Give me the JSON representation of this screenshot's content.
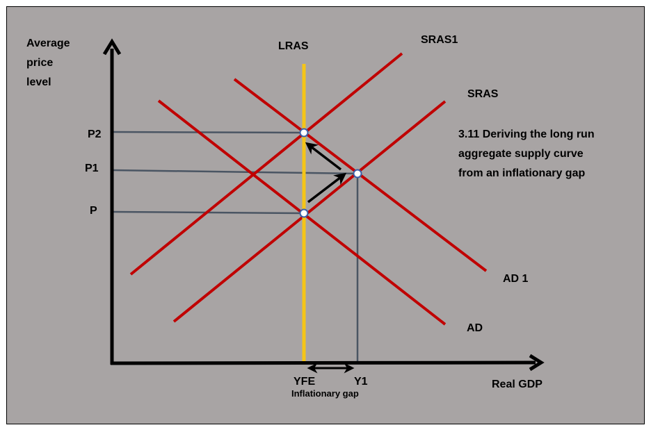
{
  "colors": {
    "background": "#a8a4a4",
    "curve": "#c00000",
    "lras": "#f5c518",
    "guide": "#4a5563",
    "axis": "#000000",
    "point_fill": "#ffffff",
    "point_stroke": "#3b5fa8"
  },
  "axes": {
    "y_label_line1": "Average",
    "y_label_line2": "price",
    "y_label_line3": "level",
    "x_label": "Real GDP"
  },
  "price_levels": {
    "p2": "P2",
    "p1": "P1",
    "p": "P"
  },
  "output_levels": {
    "yfe": "YFE",
    "y1": "Y1"
  },
  "curves": {
    "lras": "LRAS",
    "sras1": "SRAS1",
    "sras": "SRAS",
    "ad1": "AD 1",
    "ad": "AD"
  },
  "title": {
    "line1": "3.11 Deriving the long run",
    "line2": "aggregate supply curve",
    "line3": "from an inflationary gap"
  },
  "gap_label": "Inflationary gap"
}
